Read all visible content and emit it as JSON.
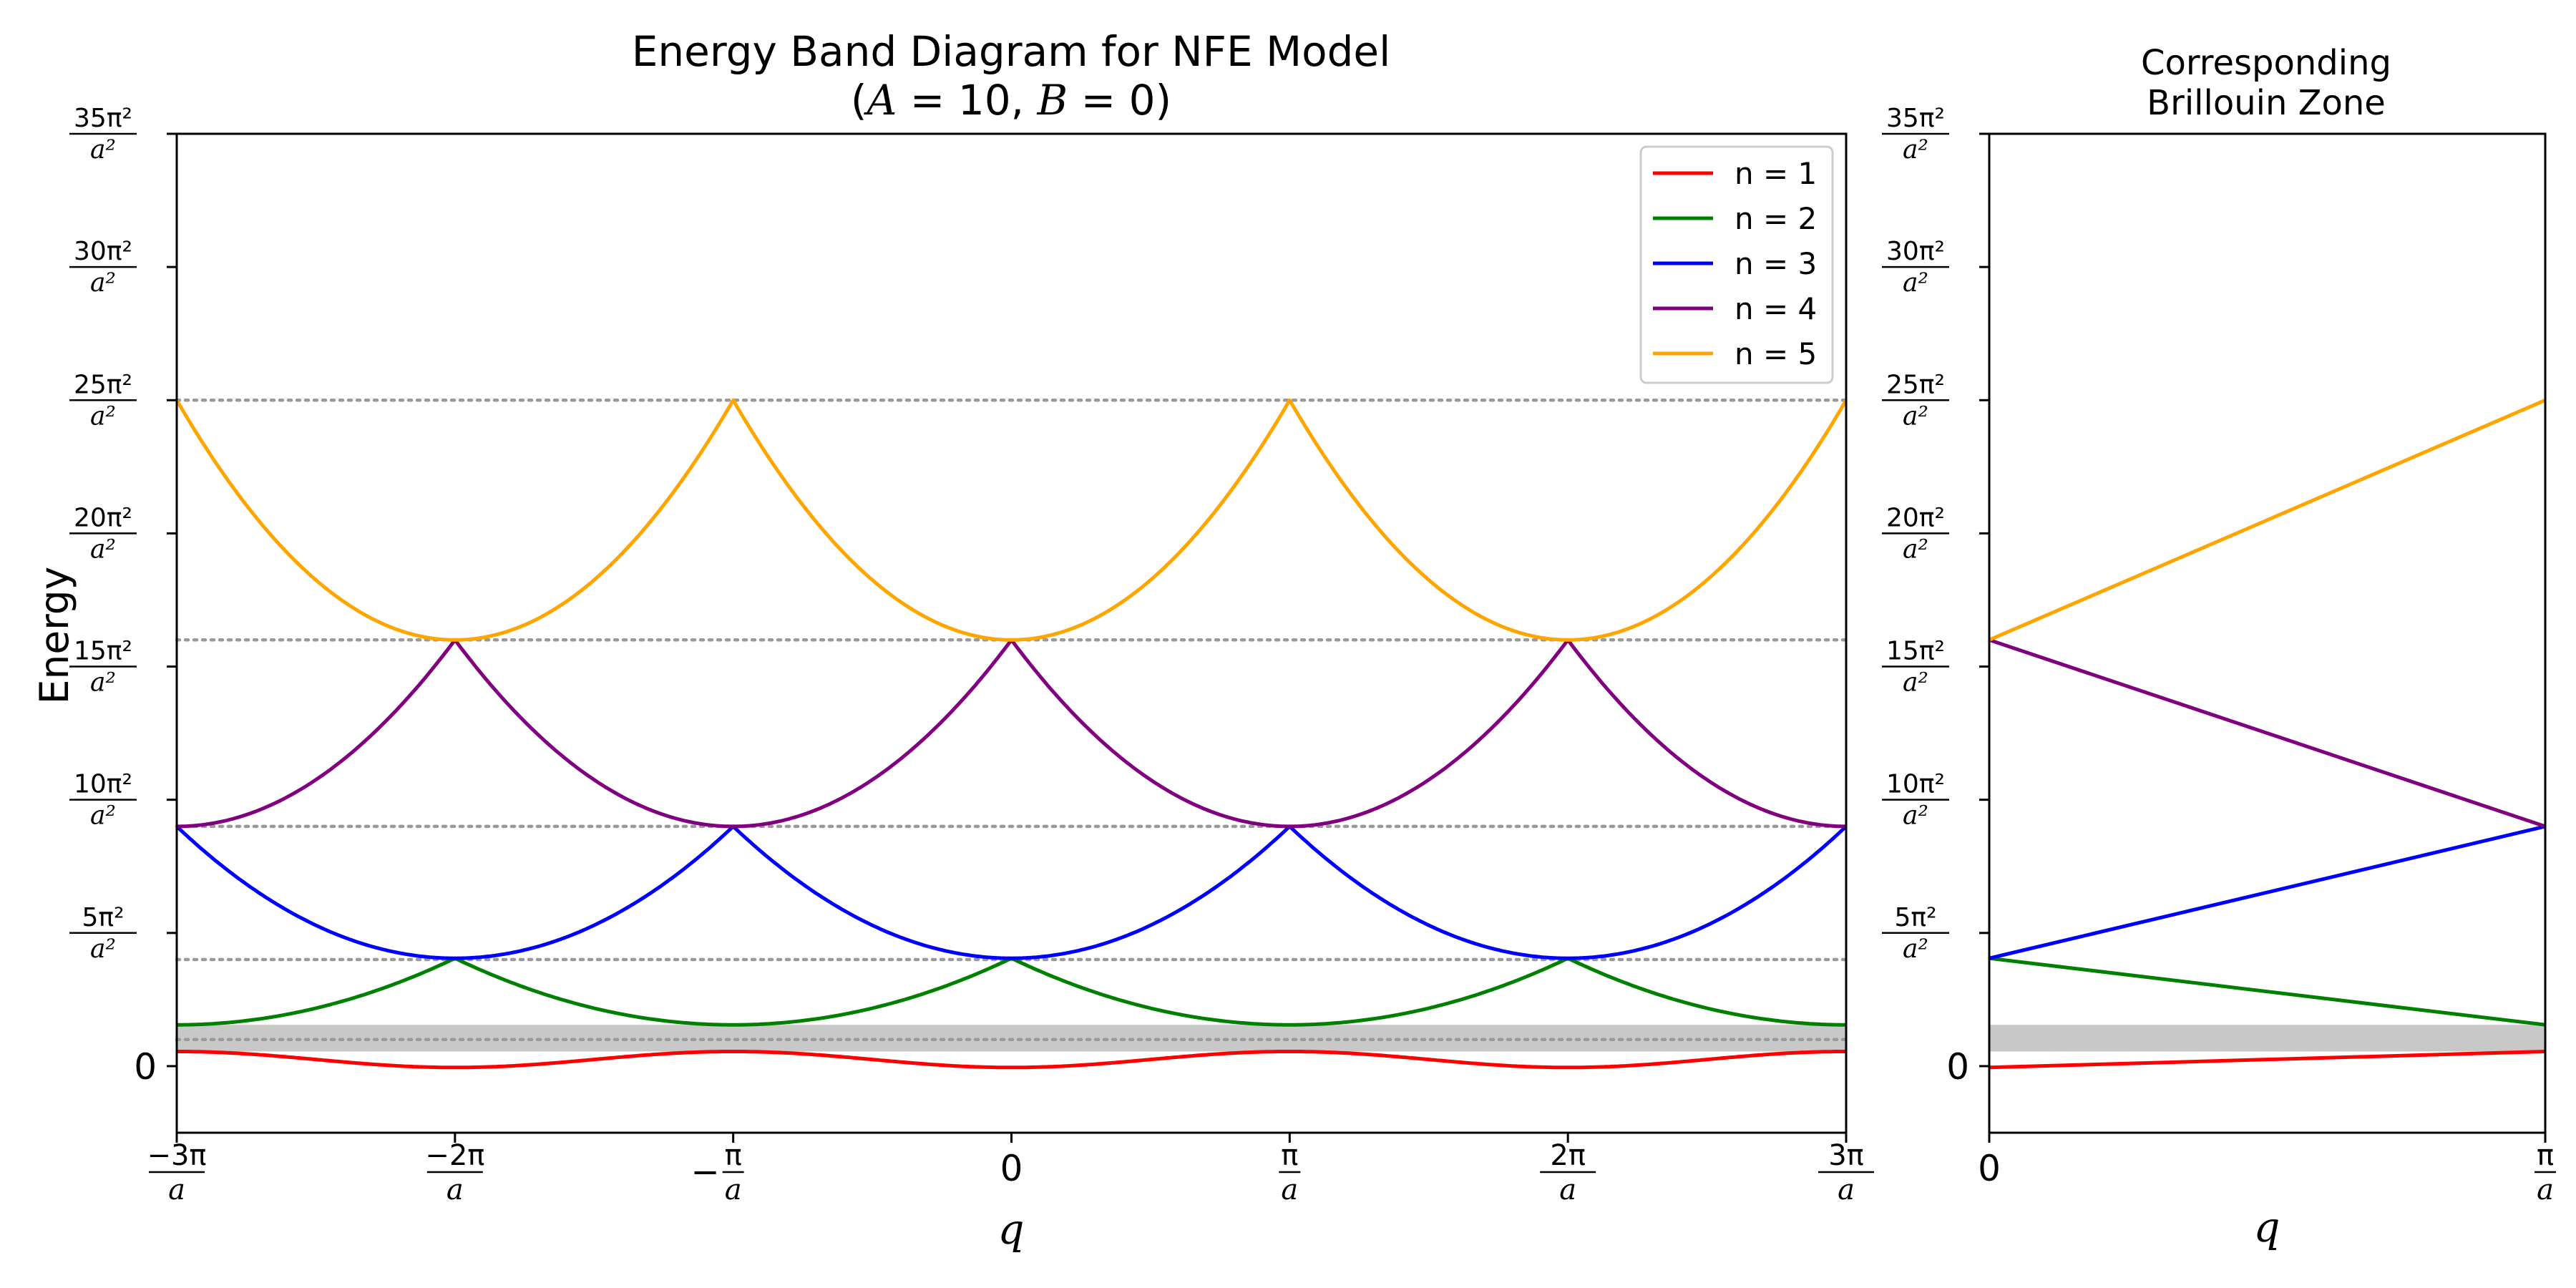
{
  "chart_data": [
    {
      "type": "line",
      "title": "Energy Band Diagram for NFE Model",
      "subtitle": {
        "open": "(",
        "A_sym": "A",
        "A_text": " = 10, ",
        "B_sym": "B",
        "B_text": " = 0)"
      },
      "xlabel": "q",
      "ylabel": "Energy",
      "x_unit": "π/a",
      "y_unit": "π²/a²",
      "xlim": [
        -3,
        3
      ],
      "ylim": [
        -2.5,
        35
      ],
      "xticks": [
        {
          "value": -3,
          "num": "−3π",
          "den": "a"
        },
        {
          "value": -2,
          "num": "−2π",
          "den": "a"
        },
        {
          "value": -1,
          "text": "−",
          "num": "π",
          "den": "a"
        },
        {
          "value": 0,
          "text": "0"
        },
        {
          "value": 1,
          "num": "π",
          "den": "a"
        },
        {
          "value": 2,
          "num": "2π",
          "den": "a"
        },
        {
          "value": 3,
          "num": "3π",
          "den": "a"
        }
      ],
      "yticks": [
        {
          "value": 0,
          "text": "0"
        },
        {
          "value": 5,
          "num": "5π²",
          "den": "a²"
        },
        {
          "value": 10,
          "num": "10π²",
          "den": "a²"
        },
        {
          "value": 15,
          "num": "15π²",
          "den": "a²"
        },
        {
          "value": 20,
          "num": "20π²",
          "den": "a²"
        },
        {
          "value": 25,
          "num": "25π²",
          "den": "a²"
        },
        {
          "value": 30,
          "num": "30π²",
          "den": "a²"
        },
        {
          "value": 35,
          "num": "35π²",
          "den": "a²"
        }
      ],
      "reference_lines": [
        1,
        4,
        9,
        16,
        25
      ],
      "gap_band": [
        0.55,
        1.55
      ],
      "legend": {
        "placement": "top-right"
      },
      "series": [
        {
          "name": "n = 1",
          "color": "#ff0000",
          "band_min": -0.05,
          "band_max": 0.55
        },
        {
          "name": "n = 2",
          "color": "#008000",
          "band_min": 1.55,
          "band_max": 4.05
        },
        {
          "name": "n = 3",
          "color": "#0000ff",
          "band_min": 4.05,
          "band_max": 9.0
        },
        {
          "name": "n = 4",
          "color": "#800080",
          "band_min": 9.0,
          "band_max": 16.0
        },
        {
          "name": "n = 5",
          "color": "#ffa500",
          "band_min": 16.0,
          "band_max": 25.0
        }
      ]
    },
    {
      "type": "line",
      "title_lines": [
        "Corresponding",
        "Brillouin Zone"
      ],
      "xlabel": "q",
      "x_unit": "π/a",
      "y_unit": "π²/a²",
      "xlim": [
        0,
        1
      ],
      "ylim": [
        -2.5,
        35
      ],
      "xticks": [
        {
          "value": 0,
          "text": "0"
        },
        {
          "value": 1,
          "num": "π",
          "den": "a"
        }
      ],
      "yticks": [
        {
          "value": 0,
          "text": "0"
        },
        {
          "value": 5,
          "num": "5π²",
          "den": "a²"
        },
        {
          "value": 10,
          "num": "10π²",
          "den": "a²"
        },
        {
          "value": 15,
          "num": "15π²",
          "den": "a²"
        },
        {
          "value": 20,
          "num": "20π²",
          "den": "a²"
        },
        {
          "value": 25,
          "num": "25π²",
          "den": "a²"
        },
        {
          "value": 30,
          "num": "30π²",
          "den": "a²"
        },
        {
          "value": 35,
          "num": "35π²",
          "den": "a²"
        }
      ],
      "gap_band": [
        0.55,
        1.55
      ],
      "series": [
        {
          "ref": "n = 1",
          "color": "#ff0000",
          "x": [
            0,
            1
          ],
          "y": [
            -0.05,
            0.55
          ]
        },
        {
          "ref": "n = 2",
          "color": "#008000",
          "x": [
            0,
            1
          ],
          "y": [
            4.05,
            1.55
          ]
        },
        {
          "ref": "n = 3",
          "color": "#0000ff",
          "x": [
            0,
            1
          ],
          "y": [
            4.05,
            9.0
          ]
        },
        {
          "ref": "n = 4",
          "color": "#800080",
          "x": [
            0,
            1
          ],
          "y": [
            16.0,
            9.0
          ]
        },
        {
          "ref": "n = 5",
          "color": "#ffa500",
          "x": [
            0,
            1
          ],
          "y": [
            16.0,
            25.0
          ]
        }
      ]
    }
  ]
}
